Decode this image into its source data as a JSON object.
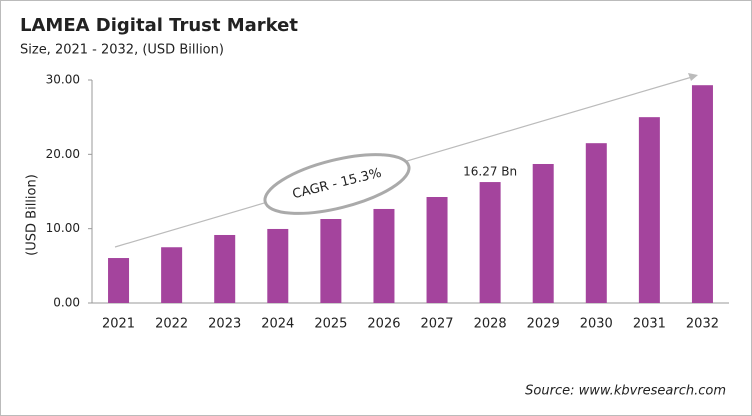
{
  "chart_data": {
    "type": "bar",
    "title": "LAMEA Digital Trust Market",
    "subtitle": "Size, 2021 - 2032, (USD Billion)",
    "y_label": "(USD Billion)",
    "annotation": "CAGR - 15.3%",
    "source": "Source: www.kbvresearch.com",
    "categories": [
      "2021",
      "2022",
      "2023",
      "2024",
      "2025",
      "2026",
      "2027",
      "2028",
      "2029",
      "2030",
      "2031",
      "2032"
    ],
    "values": [
      6.05,
      7.5,
      9.15,
      9.96,
      11.3,
      12.65,
      14.26,
      16.27,
      18.7,
      21.5,
      25.0,
      29.3
    ],
    "value_labels": [
      null,
      null,
      null,
      null,
      null,
      null,
      null,
      "16.27 Bn",
      null,
      null,
      null,
      null
    ],
    "color": "#a4449d",
    "ylim": [
      0,
      30
    ],
    "yticks": [
      {
        "value": 0,
        "label": "0.00"
      },
      {
        "value": 10,
        "label": "10.00"
      },
      {
        "value": 20,
        "label": "20.00"
      },
      {
        "value": 30,
        "label": "30.00"
      }
    ]
  }
}
